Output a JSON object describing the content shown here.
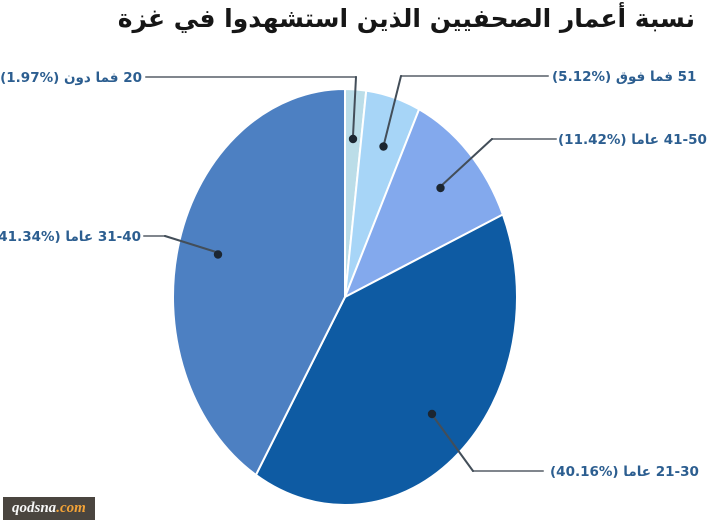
{
  "chart_data": {
    "type": "pie",
    "title": "نسبة أعمار الصحفيين الذين استشهدوا في غزة",
    "unit": "percent",
    "direction": "clockwise",
    "start_angle_from_top_deg": 0,
    "legend_position": "callout-labels",
    "slices": [
      {
        "label": "20 فما دون",
        "value": 1.97,
        "display": "20 فما دون (%1.97)",
        "color": "#bbdde8"
      },
      {
        "label": "51 فما فوق",
        "value": 5.12,
        "display": "51 فما فوق (%5.12)",
        "color": "#a7d5f7"
      },
      {
        "label": "41-50 عاما",
        "value": 11.42,
        "display": "41-50 عاما (%11.42)",
        "color": "#83a9ed"
      },
      {
        "label": "21-30 عاما",
        "value": 40.16,
        "display": "21-30 عاما (%40.16)",
        "color": "#0e5ba3"
      },
      {
        "label": "31-40 عاما",
        "value": 41.34,
        "display": "31-40 عاما (%41.34)",
        "color": "#4d80c2"
      }
    ]
  },
  "colors": {
    "label_text": "#2c5e90",
    "leader_line_light": "#80868d",
    "leader_line_dark": "#434e59",
    "leader_dot": "#1c2631",
    "title_text": "#161616",
    "watermark_bg": "#4a453f",
    "watermark_tld": "#f2a237"
  },
  "watermark": {
    "site": "qodsna",
    "tld": ".com"
  }
}
